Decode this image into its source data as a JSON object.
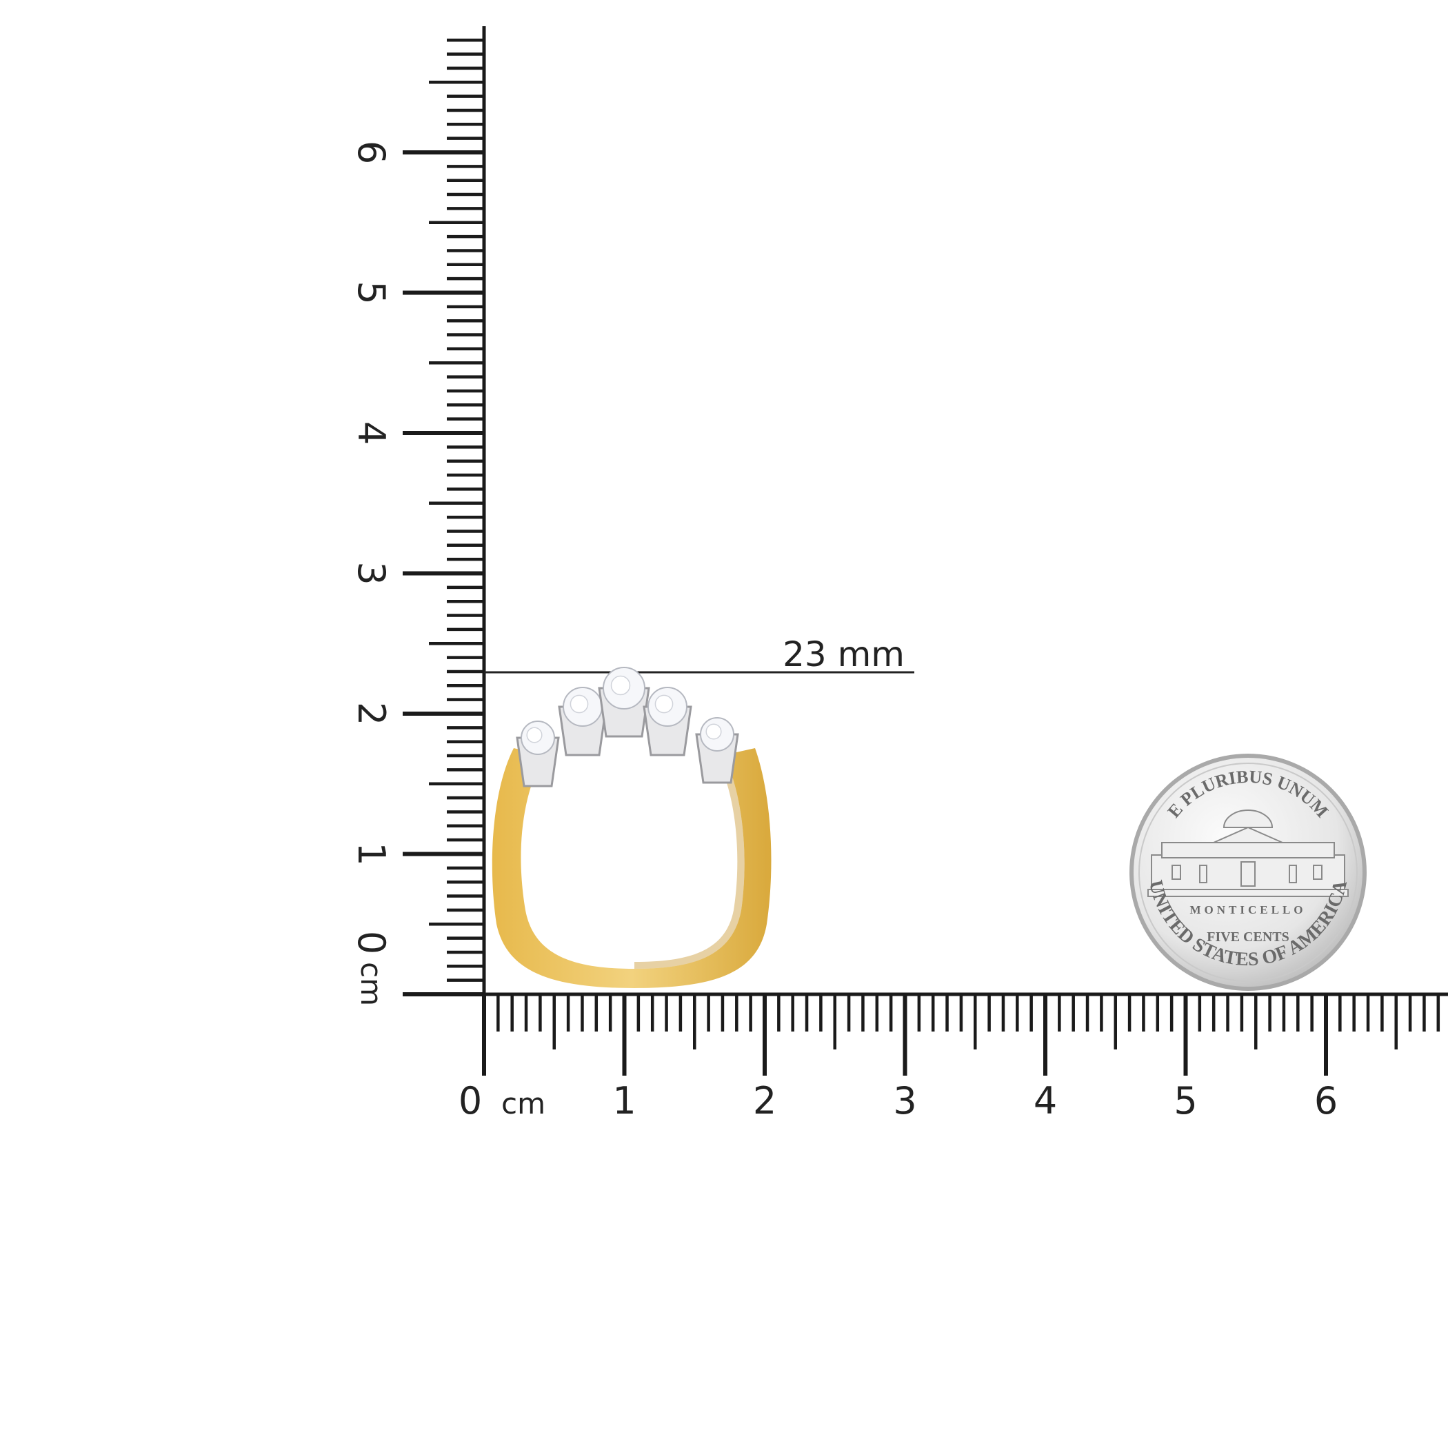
{
  "ruler": {
    "unit": "cm",
    "horizontal_labels": [
      "0",
      "1",
      "2",
      "3",
      "4",
      "5",
      "6"
    ],
    "vertical_labels": [
      "0",
      "1",
      "2",
      "3",
      "4",
      "5",
      "6"
    ],
    "range_cm": [
      0,
      6.9
    ],
    "color": "#1a1a1a"
  },
  "measurement": {
    "label": "23 mm",
    "value_mm": 23
  },
  "ring": {
    "band_color": "#e2b64e",
    "setting_color": "#e8e8ea",
    "stone_count": 5
  },
  "coin": {
    "top_text": "E PLURIBUS UNUM",
    "building_text": "MONTICELLO",
    "denomination": "FIVE CENTS",
    "bottom_text": "UNITED STATES OF AMERICA",
    "color": "#d8d8d8"
  }
}
